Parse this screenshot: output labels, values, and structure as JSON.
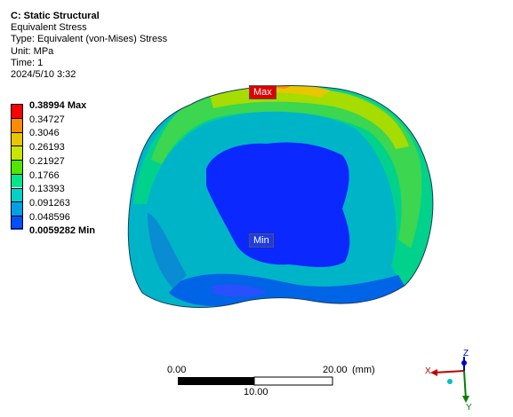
{
  "info": {
    "title": "C: Static Structural",
    "result": "Equivalent Stress",
    "type": "Type: Equivalent (von-Mises) Stress",
    "unit": "Unit: MPa",
    "time": "Time: 1",
    "date": "2024/5/10 3:32"
  },
  "legend": {
    "labels": [
      "0.38994 Max",
      "0.34727",
      "0.3046",
      "0.26193",
      "0.21927",
      "0.1766",
      "0.13393",
      "0.091263",
      "0.048596",
      "0.0059282 Min"
    ],
    "colors": [
      "#ff0000",
      "#ff8c00",
      "#e8c600",
      "#c8e600",
      "#4fe600",
      "#00e68c",
      "#00d2c8",
      "#00a0e6",
      "#0050ff",
      "#0000ff"
    ]
  },
  "markers": {
    "max": "Max",
    "min": "Min"
  },
  "scale_bar": {
    "left": "0.00",
    "right": "20.00",
    "unit": "(mm)",
    "middle": "10.00"
  },
  "triad": {
    "x": "X",
    "y": "Y",
    "z": "Z"
  }
}
